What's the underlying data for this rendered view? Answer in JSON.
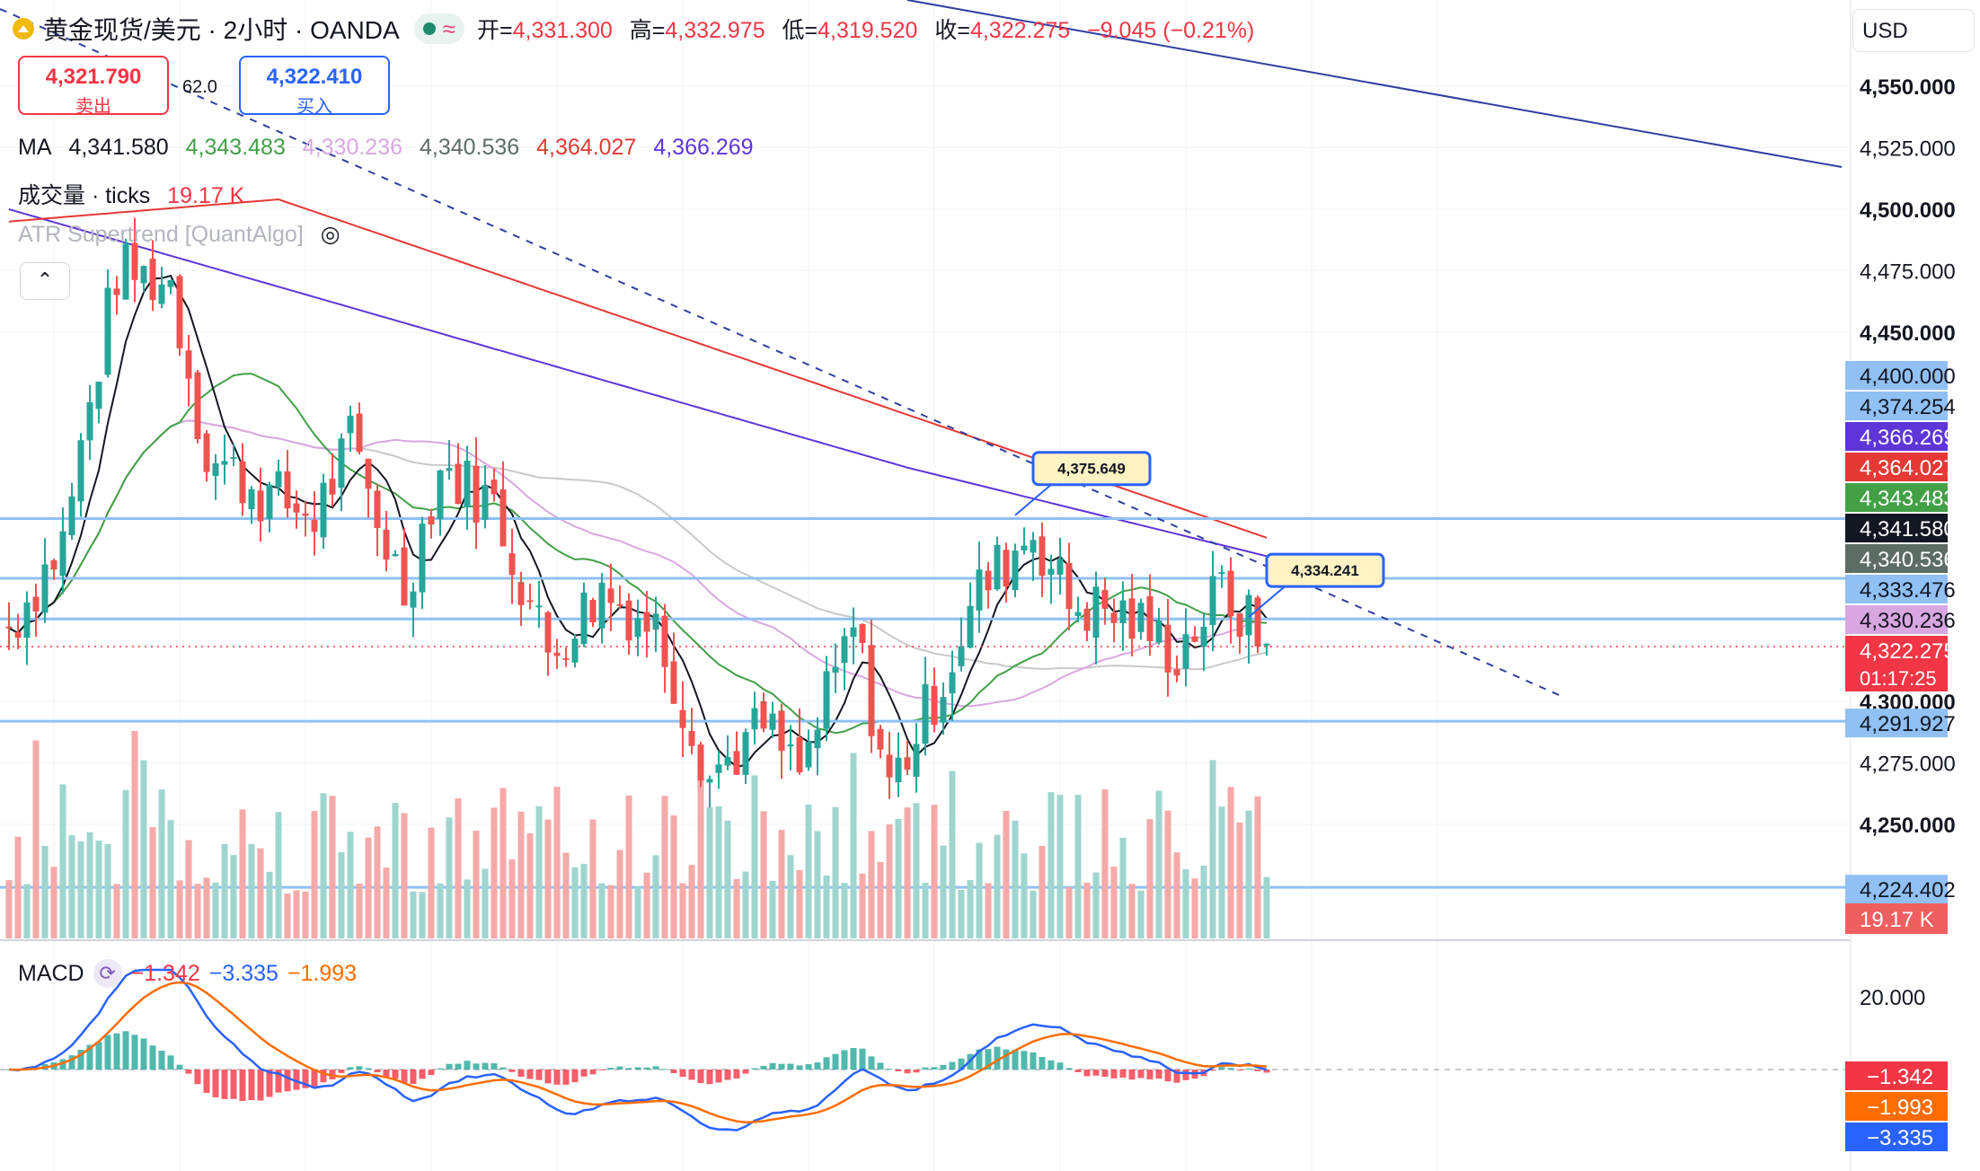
{
  "header": {
    "symbol": "黄金现货/美元 · 2小时 · OANDA",
    "approx_icon": "≈",
    "open_label": "开=",
    "open": "4,331.300",
    "high_label": "高=",
    "high": "4,332.975",
    "low_label": "低=",
    "low": "4,319.520",
    "close_label": "收=",
    "close": "4,322.275",
    "change": "−9.045 (−0.21%)"
  },
  "trade": {
    "sell_price": "4,321.790",
    "sell_label": "卖出",
    "spread": "62.0",
    "buy_price": "4,322.410",
    "buy_label": "买入"
  },
  "currency": "USD",
  "indicators": {
    "ma_label": "MA",
    "ma_values": [
      "4,341.580",
      "4,343.483",
      "4,330.236",
      "4,340.536",
      "4,364.027",
      "4,366.269"
    ],
    "ma_colors": [
      "#131722",
      "#43a047",
      "#d9a7e0",
      "#5d6d65",
      "#e53935",
      "#5e35d8"
    ],
    "volume_label": "成交量 · ticks",
    "volume_value": "19.17 K",
    "supertrend_label": "ATR Supertrend [QuantAlgo]",
    "macd_label": "MACD",
    "macd_values": [
      "−1.342",
      "−3.335",
      "−1.993"
    ],
    "macd_colors": [
      "#f23645",
      "#2962ff",
      "#ff6d00"
    ]
  },
  "chart_data": {
    "type": "candlestick",
    "price_axis": {
      "ticks": [
        "4,550.000",
        "4,525.000",
        "4,500.000",
        "4,475.000",
        "4,450.000",
        "4,300.000",
        "4,275.000",
        "4,250.000"
      ],
      "tick_values": [
        4550,
        4525,
        4500,
        4475,
        4450,
        4300,
        4275,
        4250
      ],
      "bold_ticks": [
        4550,
        4500,
        4450,
        4300,
        4250
      ]
    },
    "price_labels": [
      {
        "text": "4,400.000",
        "value": 4400,
        "color": "#90c0f4",
        "text_color": "#131722"
      },
      {
        "text": "4,374.254",
        "value": 4374.254,
        "color": "#90c0f4",
        "text_color": "#131722"
      },
      {
        "text": "4,366.269",
        "value": 4366.269,
        "color": "#5e35d8",
        "text_color": "#ffffff"
      },
      {
        "text": "4,364.027",
        "value": 4364.027,
        "color": "#e53935",
        "text_color": "#ffffff"
      },
      {
        "text": "4,343.483",
        "value": 4343.483,
        "color": "#43a047",
        "text_color": "#ffffff"
      },
      {
        "text": "4,341.580",
        "value": 4341.58,
        "color": "#131722",
        "text_color": "#ffffff"
      },
      {
        "text": "4,340.536",
        "value": 4340.536,
        "color": "#5d6d65",
        "text_color": "#ffffff"
      },
      {
        "text": "4,333.476",
        "value": 4333.476,
        "color": "#90c0f4",
        "text_color": "#131722"
      },
      {
        "text": "4,330.236",
        "value": 4330.236,
        "color": "#d9a7e0",
        "text_color": "#131722"
      },
      {
        "text": "4,322.275",
        "value": 4322.275,
        "color": "#f23645",
        "text_color": "#ffffff",
        "sub": "01:17:25"
      },
      {
        "text": "4,291.927",
        "value": 4291.927,
        "color": "#90c0f4",
        "text_color": "#131722"
      },
      {
        "text": "4,224.402",
        "value": 4224.402,
        "color": "#90c0f4",
        "text_color": "#131722"
      }
    ],
    "volume_tag": "19.17 K",
    "horizontal_levels": [
      4374.254,
      4350,
      4333.476,
      4291.927,
      4224.402
    ],
    "callouts": [
      {
        "text": "4,375.649",
        "bar": 112,
        "price": 4375.649
      },
      {
        "text": "4,334.241",
        "bar": 138,
        "price": 4334.241
      }
    ],
    "macd_axis": {
      "ticks": [
        "20.000"
      ],
      "tick_values": [
        20
      ]
    },
    "macd_labels": [
      {
        "text": "−1.342",
        "value": -1.342,
        "color": "#f23645"
      },
      {
        "text": "−1.993",
        "value": -1.993,
        "color": "#ff6d00"
      },
      {
        "text": "−3.335",
        "value": -3.335,
        "color": "#2962ff"
      }
    ],
    "close_path": [
      {
        "bar": 0,
        "price": 4330
      },
      {
        "bar": 6,
        "price": 4365
      },
      {
        "bar": 12,
        "price": 4475
      },
      {
        "bar": 18,
        "price": 4470
      },
      {
        "bar": 22,
        "price": 4400
      },
      {
        "bar": 28,
        "price": 4385
      },
      {
        "bar": 34,
        "price": 4375
      },
      {
        "bar": 38,
        "price": 4405
      },
      {
        "bar": 44,
        "price": 4345
      },
      {
        "bar": 48,
        "price": 4395
      },
      {
        "bar": 54,
        "price": 4380
      },
      {
        "bar": 60,
        "price": 4320
      },
      {
        "bar": 66,
        "price": 4345
      },
      {
        "bar": 72,
        "price": 4330
      },
      {
        "bar": 78,
        "price": 4270
      },
      {
        "bar": 84,
        "price": 4290
      },
      {
        "bar": 88,
        "price": 4270
      },
      {
        "bar": 94,
        "price": 4330
      },
      {
        "bar": 98,
        "price": 4265
      },
      {
        "bar": 104,
        "price": 4310
      },
      {
        "bar": 108,
        "price": 4345
      },
      {
        "bar": 114,
        "price": 4370
      },
      {
        "bar": 118,
        "price": 4340
      },
      {
        "bar": 124,
        "price": 4335
      },
      {
        "bar": 130,
        "price": 4320
      },
      {
        "bar": 135,
        "price": 4345
      },
      {
        "bar": 140,
        "price": 4322
      }
    ]
  }
}
